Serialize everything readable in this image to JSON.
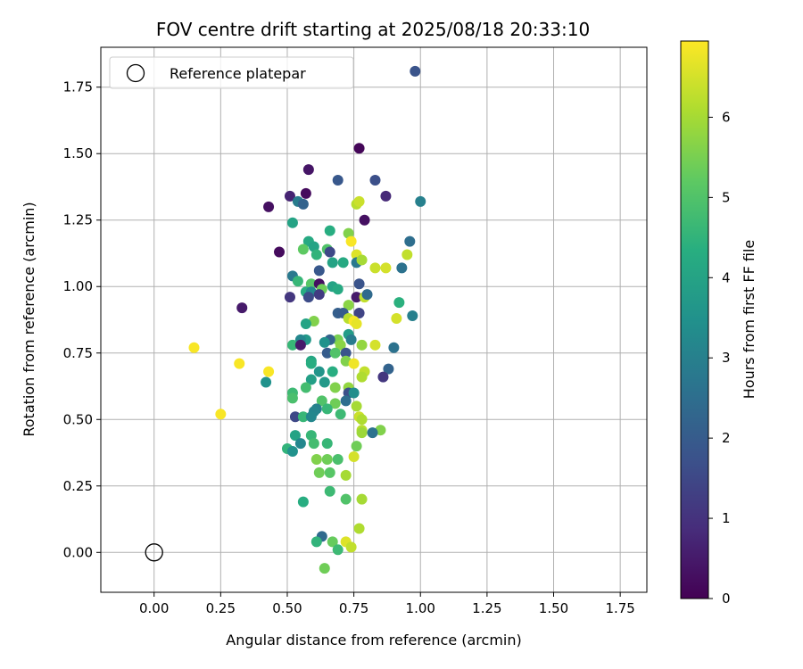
{
  "chart_data": {
    "type": "scatter",
    "title": "FOV centre drift starting at 2025/08/18 20:33:10",
    "xlabel": "Angular distance from reference (arcmin)",
    "ylabel": "Rotation from reference (arcmin)",
    "colorbar_label": "Hours from first FF file",
    "xlim": [
      -0.2,
      1.85
    ],
    "ylim": [
      -0.15,
      1.9
    ],
    "clim": [
      0,
      6.95
    ],
    "grid": true,
    "colormap": "viridis",
    "legend": {
      "position": "top-left",
      "entries": [
        "Reference platepar"
      ]
    },
    "xticks": [
      "0.00",
      "0.25",
      "0.50",
      "0.75",
      "1.00",
      "1.25",
      "1.50",
      "1.75"
    ],
    "yticks": [
      "0.00",
      "0.25",
      "0.50",
      "0.75",
      "1.00",
      "1.25",
      "1.50",
      "1.75"
    ],
    "cticks": [
      "0",
      "1",
      "2",
      "3",
      "4",
      "5",
      "6"
    ],
    "reference_point": [
      0.0,
      0.0
    ],
    "points": [
      [
        0.98,
        1.81,
        1.8
      ],
      [
        0.77,
        1.52,
        0.1
      ],
      [
        0.58,
        1.44,
        0.4
      ],
      [
        0.69,
        1.4,
        1.9
      ],
      [
        0.83,
        1.4,
        1.7
      ],
      [
        0.51,
        1.34,
        0.7
      ],
      [
        0.57,
        1.35,
        0.2
      ],
      [
        0.87,
        1.34,
        0.8
      ],
      [
        0.54,
        1.32,
        2.9
      ],
      [
        0.56,
        1.31,
        2.2
      ],
      [
        1.0,
        1.32,
        3.0
      ],
      [
        0.43,
        1.3,
        0.3
      ],
      [
        0.76,
        1.31,
        6.2
      ],
      [
        0.77,
        1.32,
        6.4
      ],
      [
        0.79,
        1.25,
        0.3
      ],
      [
        0.52,
        1.24,
        4.0
      ],
      [
        0.47,
        1.13,
        0.2
      ],
      [
        0.58,
        1.17,
        4.2
      ],
      [
        0.6,
        1.15,
        4.0
      ],
      [
        0.61,
        1.12,
        4.5
      ],
      [
        0.56,
        1.14,
        5.2
      ],
      [
        0.66,
        1.21,
        4.3
      ],
      [
        0.73,
        1.2,
        5.6
      ],
      [
        0.74,
        1.17,
        6.9
      ],
      [
        0.96,
        1.17,
        2.5
      ],
      [
        0.65,
        1.14,
        5.0
      ],
      [
        0.66,
        1.13,
        1.5
      ],
      [
        0.76,
        1.12,
        6.6
      ],
      [
        0.95,
        1.12,
        6.3
      ],
      [
        0.67,
        1.09,
        4.0
      ],
      [
        0.71,
        1.09,
        4.2
      ],
      [
        0.76,
        1.09,
        2.8
      ],
      [
        0.78,
        1.1,
        6.0
      ],
      [
        0.83,
        1.07,
        6.4
      ],
      [
        0.87,
        1.07,
        6.5
      ],
      [
        0.93,
        1.07,
        2.6
      ],
      [
        0.52,
        1.04,
        2.8
      ],
      [
        0.62,
        1.06,
        1.9
      ],
      [
        0.54,
        1.02,
        4.6
      ],
      [
        0.59,
        1.01,
        5.1
      ],
      [
        0.62,
        1.01,
        0.3
      ],
      [
        0.57,
        0.98,
        4.3
      ],
      [
        0.59,
        0.98,
        3.2
      ],
      [
        0.63,
        0.99,
        5.4
      ],
      [
        0.67,
        1.0,
        4.0
      ],
      [
        0.69,
        0.99,
        4.2
      ],
      [
        0.77,
        1.01,
        1.8
      ],
      [
        0.51,
        0.96,
        1.1
      ],
      [
        0.58,
        0.96,
        1.6
      ],
      [
        0.62,
        0.97,
        1.2
      ],
      [
        0.76,
        0.96,
        0.5
      ],
      [
        0.79,
        0.96,
        6.3
      ],
      [
        0.8,
        0.97,
        2.4
      ],
      [
        0.92,
        0.94,
        4.4
      ],
      [
        0.73,
        0.93,
        5.7
      ],
      [
        0.33,
        0.92,
        0.5
      ],
      [
        0.69,
        0.9,
        2.1
      ],
      [
        0.71,
        0.9,
        2.0
      ],
      [
        0.77,
        0.9,
        1.4
      ],
      [
        0.97,
        0.89,
        3.0
      ],
      [
        0.6,
        0.87,
        5.6
      ],
      [
        0.73,
        0.88,
        6.2
      ],
      [
        0.75,
        0.87,
        6.9
      ],
      [
        0.76,
        0.86,
        6.7
      ],
      [
        0.91,
        0.88,
        6.5
      ],
      [
        0.57,
        0.86,
        4.0
      ],
      [
        0.73,
        0.82,
        3.8
      ],
      [
        0.74,
        0.8,
        2.9
      ],
      [
        0.69,
        0.8,
        5.5
      ],
      [
        0.66,
        0.8,
        2.2
      ],
      [
        0.57,
        0.8,
        3.7
      ],
      [
        0.55,
        0.8,
        3.2
      ],
      [
        0.52,
        0.78,
        4.6
      ],
      [
        0.55,
        0.78,
        0.5
      ],
      [
        0.64,
        0.79,
        3.5
      ],
      [
        0.7,
        0.78,
        5.7
      ],
      [
        0.78,
        0.78,
        5.8
      ],
      [
        0.83,
        0.78,
        6.5
      ],
      [
        0.9,
        0.77,
        2.6
      ],
      [
        0.15,
        0.77,
        6.9
      ],
      [
        0.65,
        0.75,
        2.0
      ],
      [
        0.68,
        0.75,
        5.0
      ],
      [
        0.72,
        0.75,
        1.8
      ],
      [
        0.59,
        0.72,
        4.1
      ],
      [
        0.59,
        0.71,
        4.3
      ],
      [
        0.72,
        0.72,
        5.6
      ],
      [
        0.75,
        0.71,
        6.8
      ],
      [
        0.32,
        0.71,
        6.9
      ],
      [
        0.79,
        0.68,
        6.3
      ],
      [
        0.88,
        0.69,
        2.2
      ],
      [
        0.43,
        0.68,
        6.9
      ],
      [
        0.62,
        0.68,
        3.6
      ],
      [
        0.67,
        0.68,
        4.3
      ],
      [
        0.78,
        0.66,
        6.1
      ],
      [
        0.86,
        0.66,
        1.1
      ],
      [
        0.42,
        0.64,
        3.5
      ],
      [
        0.59,
        0.65,
        3.9
      ],
      [
        0.64,
        0.64,
        3.7
      ],
      [
        0.68,
        0.62,
        5.6
      ],
      [
        0.73,
        0.62,
        5.8
      ],
      [
        0.57,
        0.62,
        4.8
      ],
      [
        0.52,
        0.6,
        4.7
      ],
      [
        0.73,
        0.6,
        1.7
      ],
      [
        0.75,
        0.6,
        3.4
      ],
      [
        0.52,
        0.58,
        4.9
      ],
      [
        0.63,
        0.57,
        5.0
      ],
      [
        0.72,
        0.57,
        2.5
      ],
      [
        0.76,
        0.55,
        6.0
      ],
      [
        0.68,
        0.56,
        5.4
      ],
      [
        0.61,
        0.54,
        3.0
      ],
      [
        0.6,
        0.53,
        3.1
      ],
      [
        0.65,
        0.54,
        4.6
      ],
      [
        0.25,
        0.52,
        6.9
      ],
      [
        0.7,
        0.52,
        4.7
      ],
      [
        0.53,
        0.51,
        1.5
      ],
      [
        0.56,
        0.51,
        4.6
      ],
      [
        0.59,
        0.51,
        3.2
      ],
      [
        0.77,
        0.51,
        6.4
      ],
      [
        0.78,
        0.5,
        6.1
      ],
      [
        0.78,
        0.46,
        6.2
      ],
      [
        0.85,
        0.46,
        5.6
      ],
      [
        0.78,
        0.45,
        5.9
      ],
      [
        0.82,
        0.45,
        2.6
      ],
      [
        0.53,
        0.44,
        4.0
      ],
      [
        0.59,
        0.44,
        4.6
      ],
      [
        0.55,
        0.41,
        3.2
      ],
      [
        0.6,
        0.41,
        4.8
      ],
      [
        0.65,
        0.41,
        4.6
      ],
      [
        0.76,
        0.4,
        5.4
      ],
      [
        0.5,
        0.39,
        4.5
      ],
      [
        0.52,
        0.38,
        3.5
      ],
      [
        0.61,
        0.35,
        5.6
      ],
      [
        0.65,
        0.35,
        5.4
      ],
      [
        0.69,
        0.35,
        4.9
      ],
      [
        0.75,
        0.36,
        6.5
      ],
      [
        0.62,
        0.3,
        5.4
      ],
      [
        0.66,
        0.3,
        5.1
      ],
      [
        0.72,
        0.29,
        6.0
      ],
      [
        0.66,
        0.23,
        4.7
      ],
      [
        0.72,
        0.2,
        5.0
      ],
      [
        0.78,
        0.2,
        6.0
      ],
      [
        0.56,
        0.19,
        4.3
      ],
      [
        0.77,
        0.09,
        6.1
      ],
      [
        0.63,
        0.06,
        2.4
      ],
      [
        0.61,
        0.04,
        4.5
      ],
      [
        0.67,
        0.04,
        5.3
      ],
      [
        0.72,
        0.04,
        6.6
      ],
      [
        0.69,
        0.01,
        4.7
      ],
      [
        0.74,
        0.02,
        6.3
      ],
      [
        0.64,
        -0.06,
        5.4
      ]
    ]
  }
}
